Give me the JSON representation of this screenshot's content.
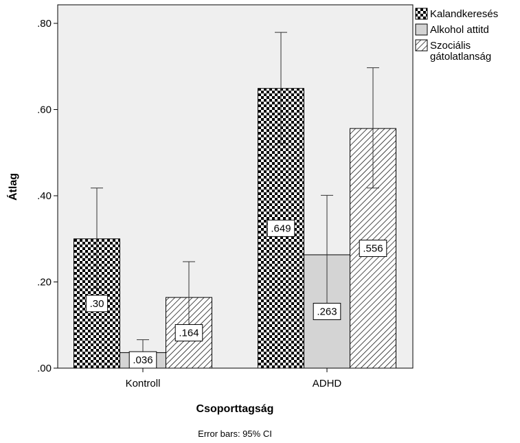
{
  "chart_data": {
    "type": "bar",
    "categories": [
      "Kontroll",
      "ADHD"
    ],
    "series": [
      {
        "name": "Kalandkeresés",
        "values": [
          0.3,
          0.649
        ],
        "labels": [
          ".30",
          ".649"
        ],
        "ci_low": [
          0.185,
          0.522
        ],
        "ci_high": [
          0.418,
          0.779
        ],
        "pattern": "checker"
      },
      {
        "name": "Alkohol attitd",
        "values": [
          0.036,
          0.263
        ],
        "labels": [
          ".036",
          ".263"
        ],
        "ci_low": [
          0.004,
          0.124
        ],
        "ci_high": [
          0.066,
          0.401
        ],
        "pattern": "solid-gray"
      },
      {
        "name": "Szociális gátolatlanság",
        "name_lines": [
          "Szociális",
          "gátolatlanság"
        ],
        "values": [
          0.164,
          0.556
        ],
        "labels": [
          ".164",
          ".556"
        ],
        "ci_low": [
          0.084,
          0.418
        ],
        "ci_high": [
          0.247,
          0.697
        ],
        "pattern": "diagonal-hatch"
      }
    ],
    "ylim": [
      0,
      0.8
    ],
    "yticks": [
      0.0,
      0.2,
      0.4,
      0.6,
      0.8
    ],
    "ytick_labels": [
      ".00",
      ".20",
      ".40",
      ".60",
      ".80"
    ],
    "ylabel": "Átlag",
    "xlabel": "Csoporttagság",
    "note": "Error bars: 95% CI",
    "legend_position": "top-right",
    "grid": false,
    "colors": {
      "plot_bg": "#efefef",
      "bar_gray": "#d4d4d4",
      "ink": "#000000"
    }
  }
}
